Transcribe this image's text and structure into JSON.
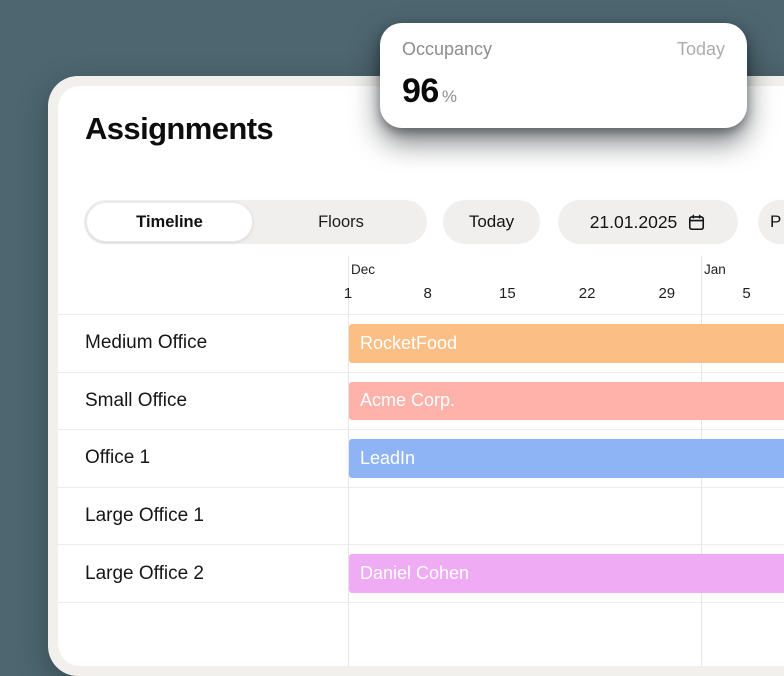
{
  "occupancy_card": {
    "title": "Occupancy",
    "period": "Today",
    "value": "96",
    "unit": "%"
  },
  "header": {
    "title": "Assignments"
  },
  "toolbar": {
    "view_toggle": {
      "options": [
        {
          "label": "Timeline",
          "selected": true
        },
        {
          "label": "Floors",
          "selected": false
        }
      ]
    },
    "today_button": "Today",
    "date_picker": {
      "value": "21.01.2025",
      "icon": "calendar-icon"
    },
    "partial_button": "P"
  },
  "timeline": {
    "months": [
      "Dec",
      "Jan"
    ],
    "week_ticks": [
      "1",
      "8",
      "15",
      "22",
      "29",
      "5"
    ]
  },
  "rows": [
    {
      "room": "Medium Office",
      "assignment": "RocketFood",
      "color": "#fbbf85"
    },
    {
      "room": "Small Office",
      "assignment": "Acme Corp.",
      "color": "#feb2aa"
    },
    {
      "room": "Office 1",
      "assignment": "LeadIn",
      "color": "#8fb4f5"
    },
    {
      "room": "Large Office 1",
      "assignment": null,
      "color": null
    },
    {
      "room": "Large Office 2",
      "assignment": "Daniel Cohen",
      "color": "#efabf4"
    }
  ],
  "colors": {
    "page_background": "#4e6670",
    "card_rim": "#f2f0ed",
    "card": "#ffffff",
    "button_background": "#f0efee",
    "grid_line": "#e6e5e3",
    "row_separator": "#ececec"
  }
}
